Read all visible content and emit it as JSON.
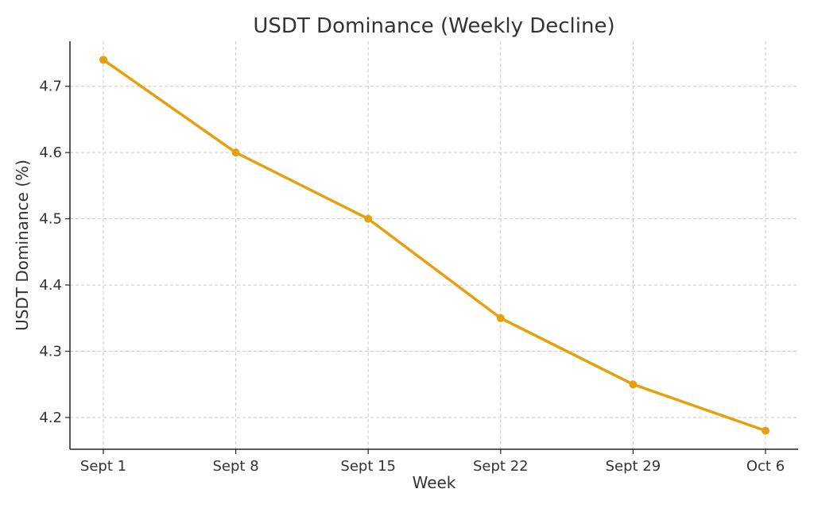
{
  "chart_data": {
    "type": "line",
    "title": "USDT Dominance (Weekly Decline)",
    "xlabel": "Week",
    "ylabel": "USDT Dominance (%)",
    "categories": [
      "Sept 1",
      "Sept 8",
      "Sept 15",
      "Sept 22",
      "Sept 29",
      "Oct 6"
    ],
    "series": [
      {
        "values": [
          4.74,
          4.6,
          4.5,
          4.35,
          4.25,
          4.18
        ],
        "color": "#E5A00D",
        "marker": "circle"
      }
    ],
    "ylim": [
      4.152,
      4.768
    ],
    "yticks": [
      4.2,
      4.3,
      4.4,
      4.5,
      4.6,
      4.7
    ],
    "ytick_labels": [
      "4.2",
      "4.3",
      "4.4",
      "4.5",
      "4.6",
      "4.7"
    ],
    "grid": true,
    "grid_style": "dashed"
  }
}
